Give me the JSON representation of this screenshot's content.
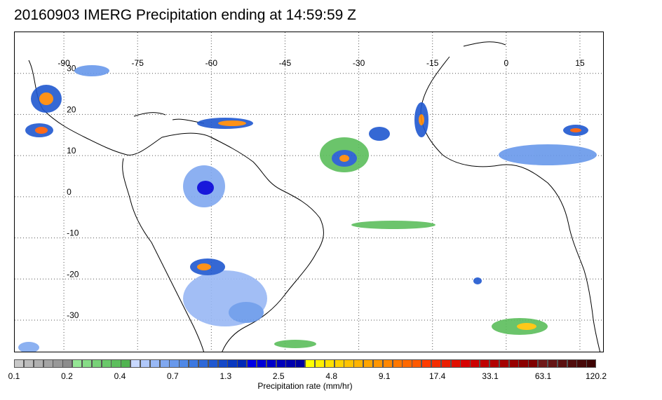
{
  "title": "20160903 IMERG Precipitation ending at 14:59:59 Z",
  "map": {
    "lon_range": [
      -100,
      20
    ],
    "lat_range": [
      -38,
      40
    ],
    "lon_ticks": [
      -90,
      -75,
      -60,
      -45,
      -30,
      -15,
      0,
      15
    ],
    "lon_tick_labels": [
      "-90",
      "-75",
      "-60",
      "-45",
      "-30",
      "-15",
      "0",
      "15"
    ],
    "lat_ticks": [
      30,
      20,
      10,
      0,
      -10,
      -20,
      -30
    ],
    "lat_tick_labels": [
      "30",
      "20",
      "10",
      "0",
      "-10",
      "-20",
      "-30"
    ],
    "gridlines": "dotted"
  },
  "colorbar": {
    "title": "Precipitation rate (mm/hr)",
    "labels": [
      "0.1",
      "0.2",
      "0.4",
      "0.7",
      "1.3",
      "2.5",
      "4.8",
      "9.1",
      "17.4",
      "33.1",
      "63.1",
      "120.2"
    ],
    "colors": [
      "#c8c8c8",
      "#bcbcbc",
      "#b0b0b0",
      "#a4a4a4",
      "#989898",
      "#8c8c8c",
      "#94e694",
      "#86dc86",
      "#78d278",
      "#6ac86a",
      "#5cbe5c",
      "#50b450",
      "#c8d8ff",
      "#b0c8fa",
      "#98b8f5",
      "#80a8f0",
      "#6898eb",
      "#5088e6",
      "#3c78e0",
      "#2e68d8",
      "#2058d0",
      "#1448c8",
      "#0838c0",
      "#0028b8",
      "#0000e6",
      "#0000d8",
      "#0000ca",
      "#0000bc",
      "#0000ae",
      "#0000a0",
      "#ffff00",
      "#fff000",
      "#ffe100",
      "#ffd200",
      "#ffc300",
      "#ffb400",
      "#ffa500",
      "#ff9600",
      "#ff8700",
      "#ff7800",
      "#ff6900",
      "#ff5a00",
      "#ff3c00",
      "#f52d00",
      "#eb1e00",
      "#e10f00",
      "#d70000",
      "#cd0000",
      "#c00000",
      "#b30000",
      "#a60000",
      "#990000",
      "#8c0000",
      "#800000",
      "#701818",
      "#661414",
      "#5c1010",
      "#520c0c",
      "#480808",
      "#3e0404"
    ]
  },
  "chart_data": {
    "type": "heatmap",
    "title": "20160903 IMERG Precipitation ending at 14:59:59 Z",
    "variable": "Precipitation rate (mm/hr)",
    "color_scale_ticks": [
      0.1,
      0.2,
      0.4,
      0.7,
      1.3,
      2.5,
      4.8,
      9.1,
      17.4,
      33.1,
      63.1,
      120.2
    ],
    "xlim_lon": [
      -100,
      20
    ],
    "ylim_lat": [
      -38,
      40
    ]
  }
}
